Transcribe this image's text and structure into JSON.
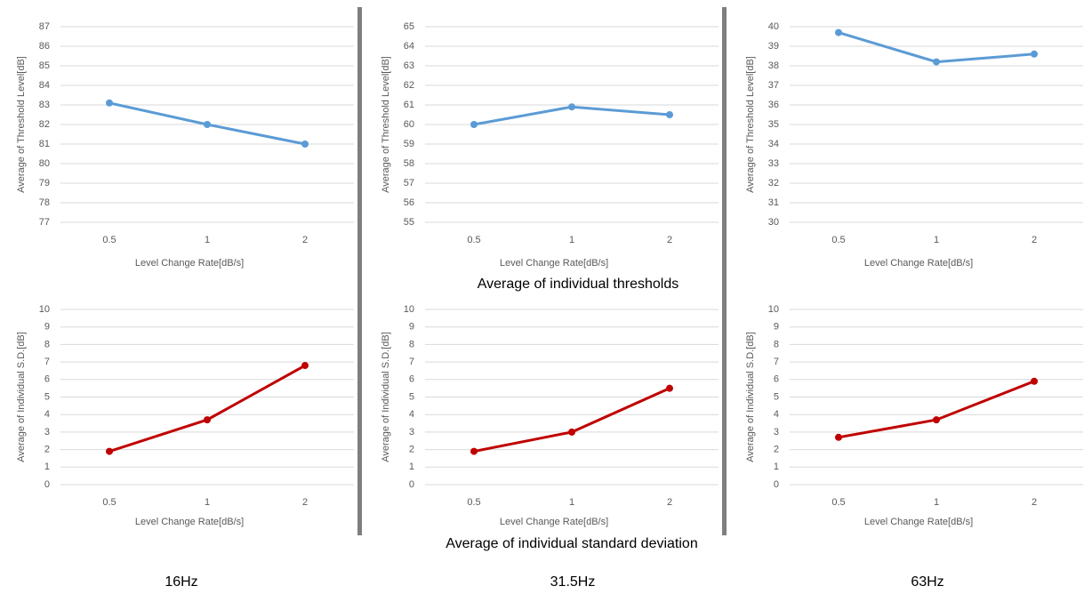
{
  "chart_data": [
    {
      "type": "line",
      "ylabel": "Average of Threshold Level[dB]",
      "xlabel": "Level Change Rate[dB/s]",
      "categories": [
        "0.5",
        "1",
        "2"
      ],
      "series": [
        {
          "color": "#5b9bd5",
          "values": [
            83.1,
            82.0,
            81.0
          ]
        }
      ],
      "ylim": [
        77,
        87
      ],
      "yticks": [
        77,
        78,
        79,
        80,
        81,
        82,
        83,
        84,
        85,
        86,
        87
      ],
      "grid": true
    },
    {
      "type": "line",
      "ylabel": "Average of Threshold Level[dB]",
      "xlabel": "Level Change Rate[dB/s]",
      "categories": [
        "0.5",
        "1",
        "2"
      ],
      "series": [
        {
          "color": "#5b9bd5",
          "values": [
            60.0,
            60.9,
            60.5
          ]
        }
      ],
      "ylim": [
        55,
        65
      ],
      "yticks": [
        55,
        56,
        57,
        58,
        59,
        60,
        61,
        62,
        63,
        64,
        65
      ],
      "grid": true
    },
    {
      "type": "line",
      "ylabel": "Average of Threshold Level[dB]",
      "xlabel": "Level Change Rate[dB/s]",
      "categories": [
        "0.5",
        "1",
        "2"
      ],
      "series": [
        {
          "color": "#5b9bd5",
          "values": [
            39.7,
            38.2,
            38.6
          ]
        }
      ],
      "ylim": [
        30,
        40
      ],
      "yticks": [
        30,
        31,
        32,
        33,
        34,
        35,
        36,
        37,
        38,
        39,
        40
      ],
      "grid": true
    },
    {
      "type": "line",
      "ylabel": "Average of Individual S.D.[dB]",
      "xlabel": "Level Change Rate[dB/s]",
      "categories": [
        "0.5",
        "1",
        "2"
      ],
      "series": [
        {
          "color": "#c00000",
          "values": [
            1.9,
            3.7,
            6.8
          ]
        }
      ],
      "ylim": [
        0,
        10
      ],
      "yticks": [
        0,
        1,
        2,
        3,
        4,
        5,
        6,
        7,
        8,
        9,
        10
      ],
      "grid": true
    },
    {
      "type": "line",
      "ylabel": "Average of Individual S.D.[dB]",
      "xlabel": "Level Change Rate[dB/s]",
      "categories": [
        "0.5",
        "1",
        "2"
      ],
      "series": [
        {
          "color": "#c00000",
          "values": [
            1.9,
            3.0,
            5.5
          ]
        }
      ],
      "ylim": [
        0,
        10
      ],
      "yticks": [
        0,
        1,
        2,
        3,
        4,
        5,
        6,
        7,
        8,
        9,
        10
      ],
      "grid": true
    },
    {
      "type": "line",
      "ylabel": "Average of Individual S.D.[dB]",
      "xlabel": "Level Change Rate[dB/s]",
      "categories": [
        "0.5",
        "1",
        "2"
      ],
      "series": [
        {
          "color": "#c00000",
          "values": [
            2.7,
            3.7,
            5.9
          ]
        }
      ],
      "ylim": [
        0,
        10
      ],
      "yticks": [
        0,
        1,
        2,
        3,
        4,
        5,
        6,
        7,
        8,
        9,
        10
      ],
      "grid": true
    }
  ],
  "captions": [
    "Average of individual thresholds",
    "Average of individual standard deviation"
  ],
  "columns": [
    "16Hz",
    "31.5Hz",
    "63Hz"
  ]
}
